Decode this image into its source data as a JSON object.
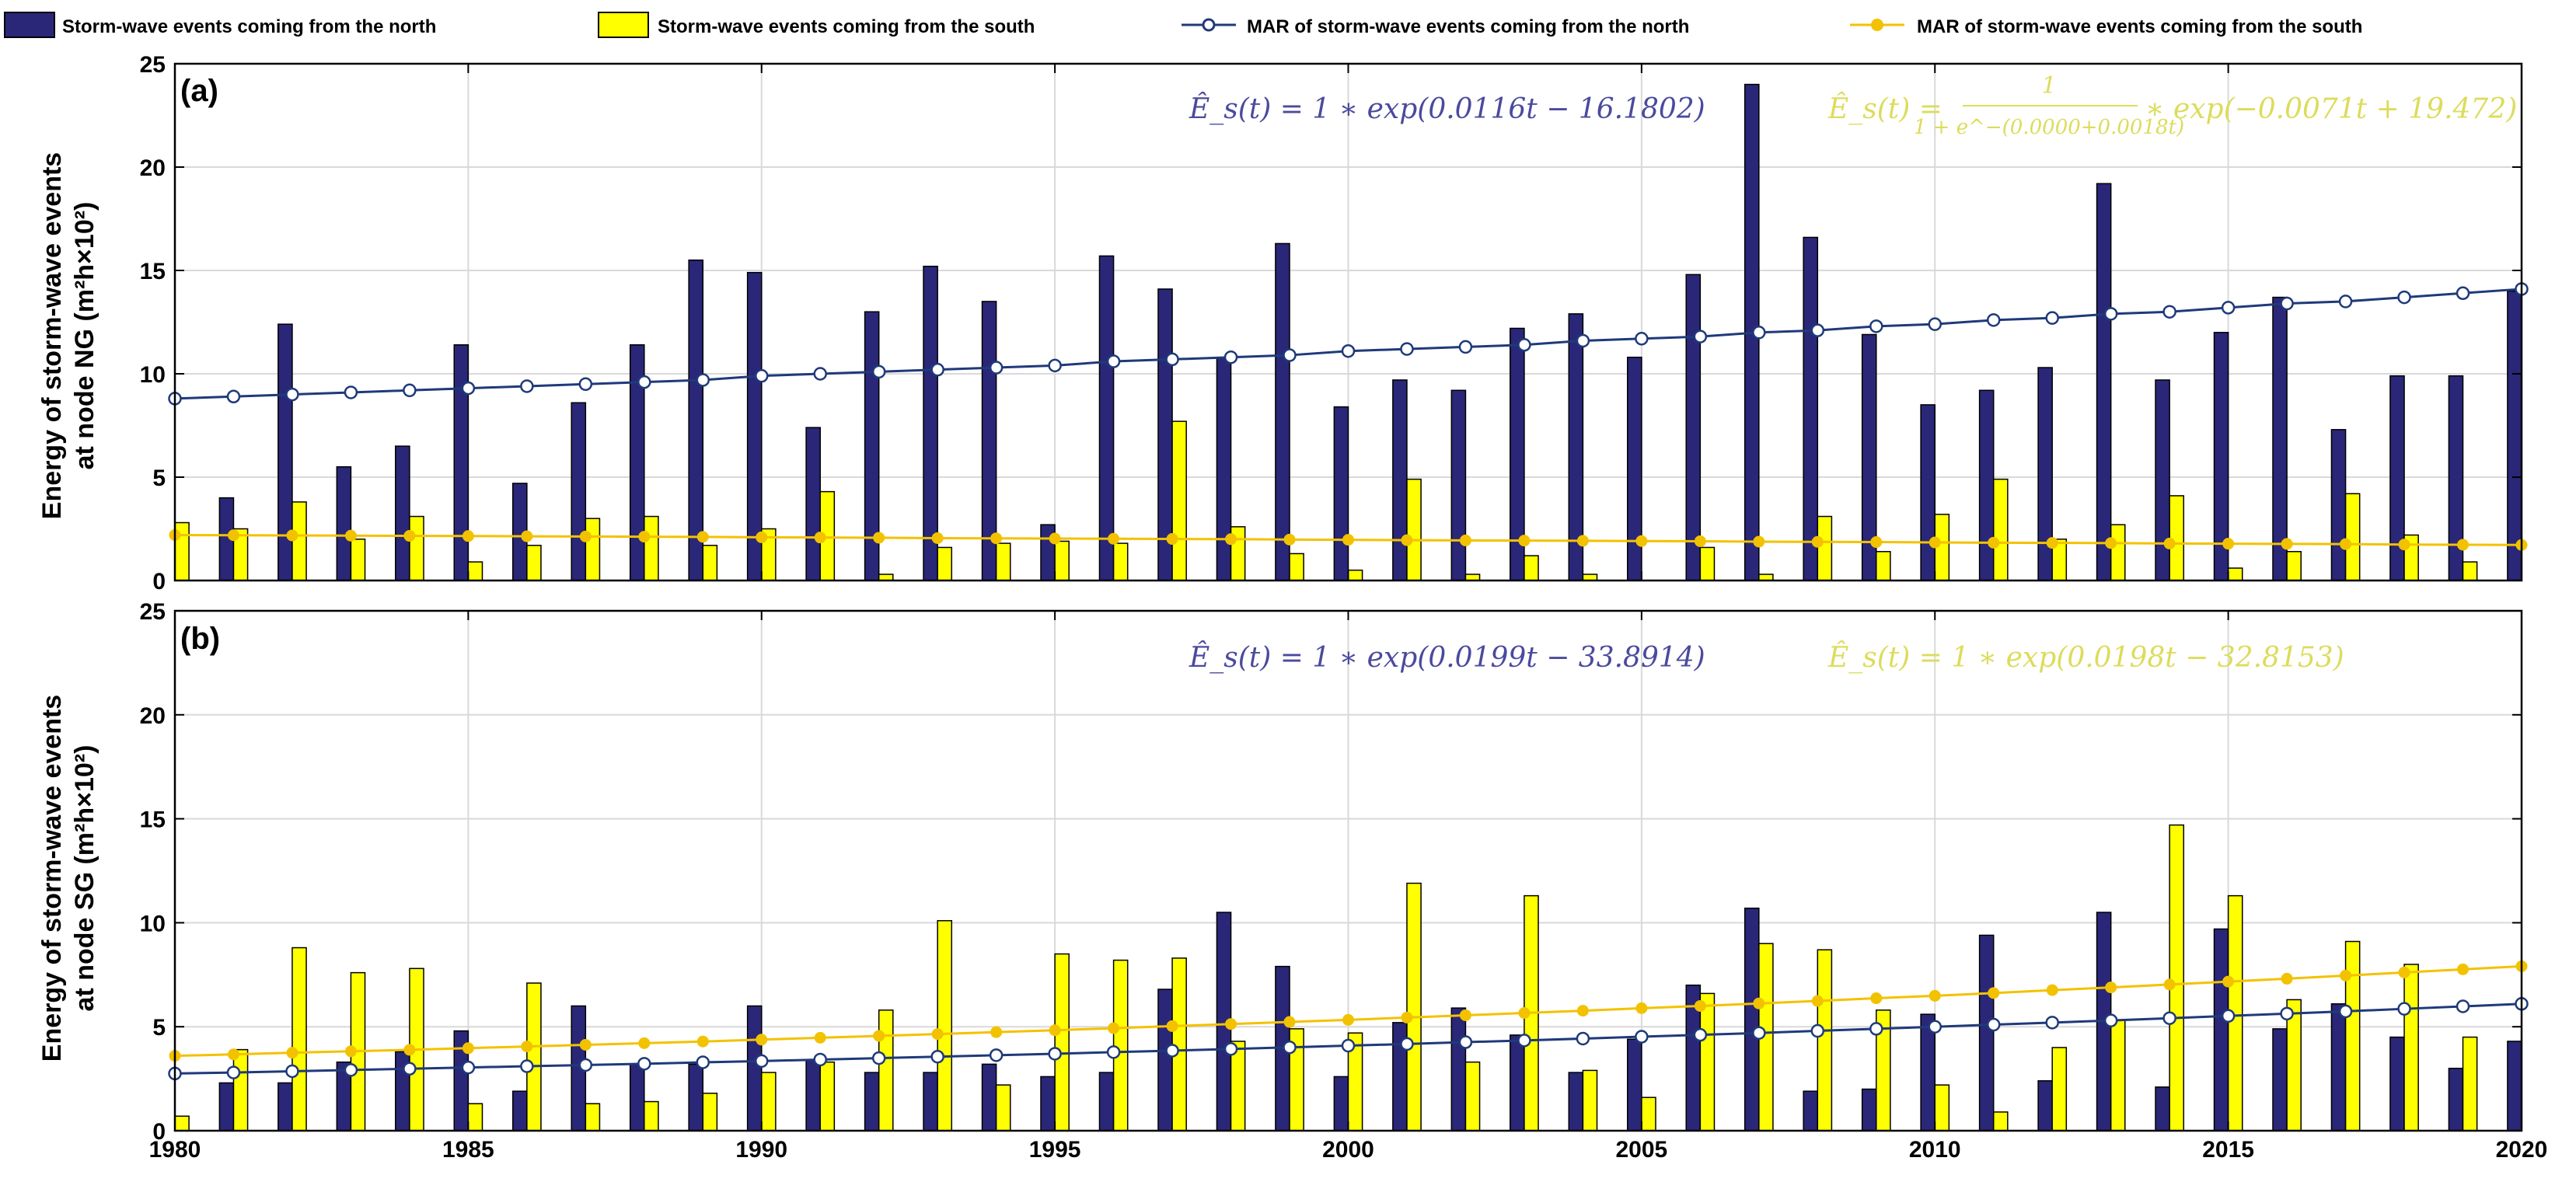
{
  "legend": {
    "north_bars": "Storm-wave events coming from the north",
    "south_bars": "Storm-wave events coming from the south",
    "north_mar": "MAR of storm-wave events coming from the north",
    "south_mar": "MAR of storm-wave events coming from the south"
  },
  "colors": {
    "north": "#2a2778",
    "south": "#ffff00",
    "north_line": "#1f3a7a",
    "south_line": "#f2c200",
    "north_eq": "#4b4a9e",
    "south_eq": "#dcdc5c",
    "grid": "#d9d9d9"
  },
  "equations": {
    "a_north": "Ê_s(t) = 1 ∗  exp(0.0116t − 16.1802)",
    "a_south_prefix": "Ê_s(t) =",
    "a_south_num": "1",
    "a_south_den": "1 + e^−(0.0000+0.0018t)",
    "a_south_suffix": "∗  exp(−0.0071t + 19.472)",
    "b_north": "Ê_s(t) = 1 ∗  exp(0.0199t − 33.8914)",
    "b_south": "Ê_s(t) = 1 ∗  exp(0.0198t − 32.8153)"
  },
  "chart_data": [
    {
      "type": "bar",
      "panel": "(a)",
      "ylabel_line1": "Energy of storm-wave events",
      "ylabel_line2": "at node NG (m²h×10²)",
      "xlim": [
        1980,
        2020
      ],
      "ylim": [
        0,
        25
      ],
      "xticks": [
        1980,
        1985,
        1990,
        1995,
        2000,
        2005,
        2010,
        2015,
        2020
      ],
      "yticks": [
        0,
        5,
        10,
        15,
        20,
        25
      ],
      "x": [
        1980,
        1981,
        1982,
        1983,
        1984,
        1985,
        1986,
        1987,
        1988,
        1989,
        1990,
        1991,
        1992,
        1993,
        1994,
        1995,
        1996,
        1997,
        1998,
        1999,
        2000,
        2001,
        2002,
        2003,
        2004,
        2005,
        2006,
        2007,
        2008,
        2009,
        2010,
        2011,
        2012,
        2013,
        2014,
        2015,
        2016,
        2017,
        2018,
        2019,
        2020
      ],
      "series": [
        {
          "name": "Storm-wave events coming from the north",
          "kind": "bar",
          "values": [
            0,
            4.0,
            12.4,
            5.5,
            6.5,
            11.4,
            4.7,
            8.6,
            11.4,
            15.5,
            14.9,
            7.4,
            13.0,
            15.2,
            13.5,
            2.7,
            15.7,
            14.1,
            10.8,
            16.3,
            8.4,
            9.7,
            9.2,
            12.2,
            12.9,
            10.8,
            14.8,
            24.0,
            16.6,
            11.9,
            8.5,
            9.2,
            10.3,
            19.2,
            9.7,
            12.0,
            13.7,
            7.3,
            9.9,
            9.9,
            14.0
          ]
        },
        {
          "name": "Storm-wave events coming from the south",
          "kind": "bar",
          "values": [
            2.8,
            2.5,
            3.8,
            2.0,
            3.1,
            0.9,
            1.7,
            3.0,
            3.1,
            1.7,
            2.5,
            4.3,
            0.3,
            1.6,
            1.8,
            1.9,
            1.8,
            7.7,
            2.6,
            1.3,
            0.5,
            4.9,
            0.3,
            1.2,
            0.3,
            0,
            1.6,
            0.3,
            3.1,
            1.4,
            3.2,
            4.9,
            2.0,
            2.7,
            4.1,
            0.6,
            1.4,
            4.2,
            2.2,
            0.9,
            0
          ]
        },
        {
          "name": "MAR of storm-wave events coming from the north",
          "kind": "line",
          "values": [
            8.8,
            8.9,
            9.0,
            9.1,
            9.2,
            9.3,
            9.4,
            9.5,
            9.6,
            9.7,
            9.9,
            10.0,
            10.1,
            10.2,
            10.3,
            10.4,
            10.6,
            10.7,
            10.8,
            10.9,
            11.1,
            11.2,
            11.3,
            11.4,
            11.6,
            11.7,
            11.8,
            12.0,
            12.1,
            12.3,
            12.4,
            12.6,
            12.7,
            12.9,
            13.0,
            13.2,
            13.4,
            13.5,
            13.7,
            13.9,
            14.1
          ]
        },
        {
          "name": "MAR of storm-wave events coming from the south",
          "kind": "line",
          "values": [
            2.2,
            2.19,
            2.18,
            2.17,
            2.16,
            2.15,
            2.14,
            2.13,
            2.12,
            2.11,
            2.09,
            2.08,
            2.07,
            2.05,
            2.04,
            2.03,
            2.02,
            2.01,
            2.0,
            1.98,
            1.97,
            1.95,
            1.94,
            1.93,
            1.92,
            1.91,
            1.9,
            1.88,
            1.87,
            1.86,
            1.84,
            1.83,
            1.82,
            1.81,
            1.79,
            1.78,
            1.77,
            1.76,
            1.74,
            1.73,
            1.72
          ]
        }
      ]
    },
    {
      "type": "bar",
      "panel": "(b)",
      "ylabel_line1": "Energy of storm-wave events",
      "ylabel_line2": "at node SG (m²h×10²)",
      "xlim": [
        1980,
        2020
      ],
      "ylim": [
        0,
        25
      ],
      "xticks": [
        1980,
        1985,
        1990,
        1995,
        2000,
        2005,
        2010,
        2015,
        2020
      ],
      "yticks": [
        0,
        5,
        10,
        15,
        20,
        25
      ],
      "x": [
        1980,
        1981,
        1982,
        1983,
        1984,
        1985,
        1986,
        1987,
        1988,
        1989,
        1990,
        1991,
        1992,
        1993,
        1994,
        1995,
        1996,
        1997,
        1998,
        1999,
        2000,
        2001,
        2002,
        2003,
        2004,
        2005,
        2006,
        2007,
        2008,
        2009,
        2010,
        2011,
        2012,
        2013,
        2014,
        2015,
        2016,
        2017,
        2018,
        2019,
        2020
      ],
      "series": [
        {
          "name": "Storm-wave events coming from the north",
          "kind": "bar",
          "values": [
            0,
            2.3,
            2.3,
            3.3,
            3.8,
            4.8,
            1.9,
            6.0,
            3.2,
            3.2,
            6.0,
            3.4,
            2.8,
            2.8,
            3.2,
            2.6,
            2.8,
            6.8,
            10.5,
            7.9,
            2.6,
            5.2,
            5.9,
            4.6,
            2.8,
            4.4,
            7.0,
            10.7,
            1.9,
            2.0,
            5.6,
            9.4,
            2.4,
            10.5,
            2.1,
            9.7,
            4.9,
            6.1,
            4.5,
            3.0,
            4.3
          ]
        },
        {
          "name": "Storm-wave events coming from the south",
          "kind": "bar",
          "values": [
            0.7,
            3.9,
            8.8,
            7.6,
            7.8,
            1.3,
            7.1,
            1.3,
            1.4,
            1.8,
            2.8,
            3.3,
            5.8,
            10.1,
            2.2,
            8.5,
            8.2,
            8.3,
            4.3,
            4.9,
            4.7,
            11.9,
            3.3,
            11.3,
            2.9,
            1.6,
            6.6,
            9.0,
            8.7,
            5.8,
            2.2,
            0.9,
            4.0,
            5.3,
            14.7,
            11.3,
            6.3,
            9.1,
            8.0,
            4.5,
            0
          ]
        },
        {
          "name": "MAR of storm-wave events coming from the north",
          "kind": "line",
          "values": [
            2.75,
            2.8,
            2.86,
            2.92,
            2.98,
            3.04,
            3.1,
            3.16,
            3.22,
            3.29,
            3.35,
            3.42,
            3.49,
            3.56,
            3.63,
            3.7,
            3.78,
            3.85,
            3.93,
            4.01,
            4.09,
            4.17,
            4.26,
            4.34,
            4.43,
            4.52,
            4.61,
            4.7,
            4.8,
            4.9,
            5.0,
            5.1,
            5.2,
            5.3,
            5.41,
            5.52,
            5.63,
            5.74,
            5.86,
            5.98,
            6.1
          ]
        },
        {
          "name": "MAR of storm-wave events coming from the south",
          "kind": "line",
          "values": [
            3.6,
            3.67,
            3.75,
            3.82,
            3.89,
            3.97,
            4.05,
            4.13,
            4.21,
            4.29,
            4.38,
            4.47,
            4.56,
            4.65,
            4.74,
            4.83,
            4.93,
            5.03,
            5.13,
            5.23,
            5.33,
            5.44,
            5.55,
            5.66,
            5.77,
            5.89,
            6.0,
            6.12,
            6.24,
            6.37,
            6.49,
            6.62,
            6.76,
            6.89,
            7.03,
            7.17,
            7.31,
            7.46,
            7.61,
            7.76,
            7.91
          ]
        }
      ]
    }
  ]
}
